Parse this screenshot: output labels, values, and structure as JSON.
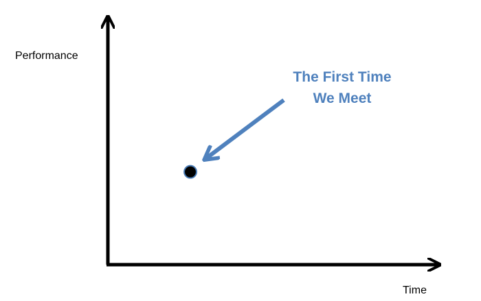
{
  "chart_data": {
    "type": "scatter",
    "title": "",
    "xlabel": "Time",
    "ylabel": "Performance",
    "x_ticks": false,
    "y_ticks": false,
    "grid": false,
    "series": [
      {
        "points": [
          {
            "x": 0.245,
            "y": 0.39
          }
        ]
      }
    ],
    "annotations": [
      {
        "lines": [
          "The First Time",
          "We Meet"
        ],
        "points_to": 0
      }
    ]
  },
  "colors": {
    "axis": "#000000",
    "point_fill": "#000000",
    "point_stroke": "#4a7cb5",
    "annotation": "#4f81bd"
  }
}
